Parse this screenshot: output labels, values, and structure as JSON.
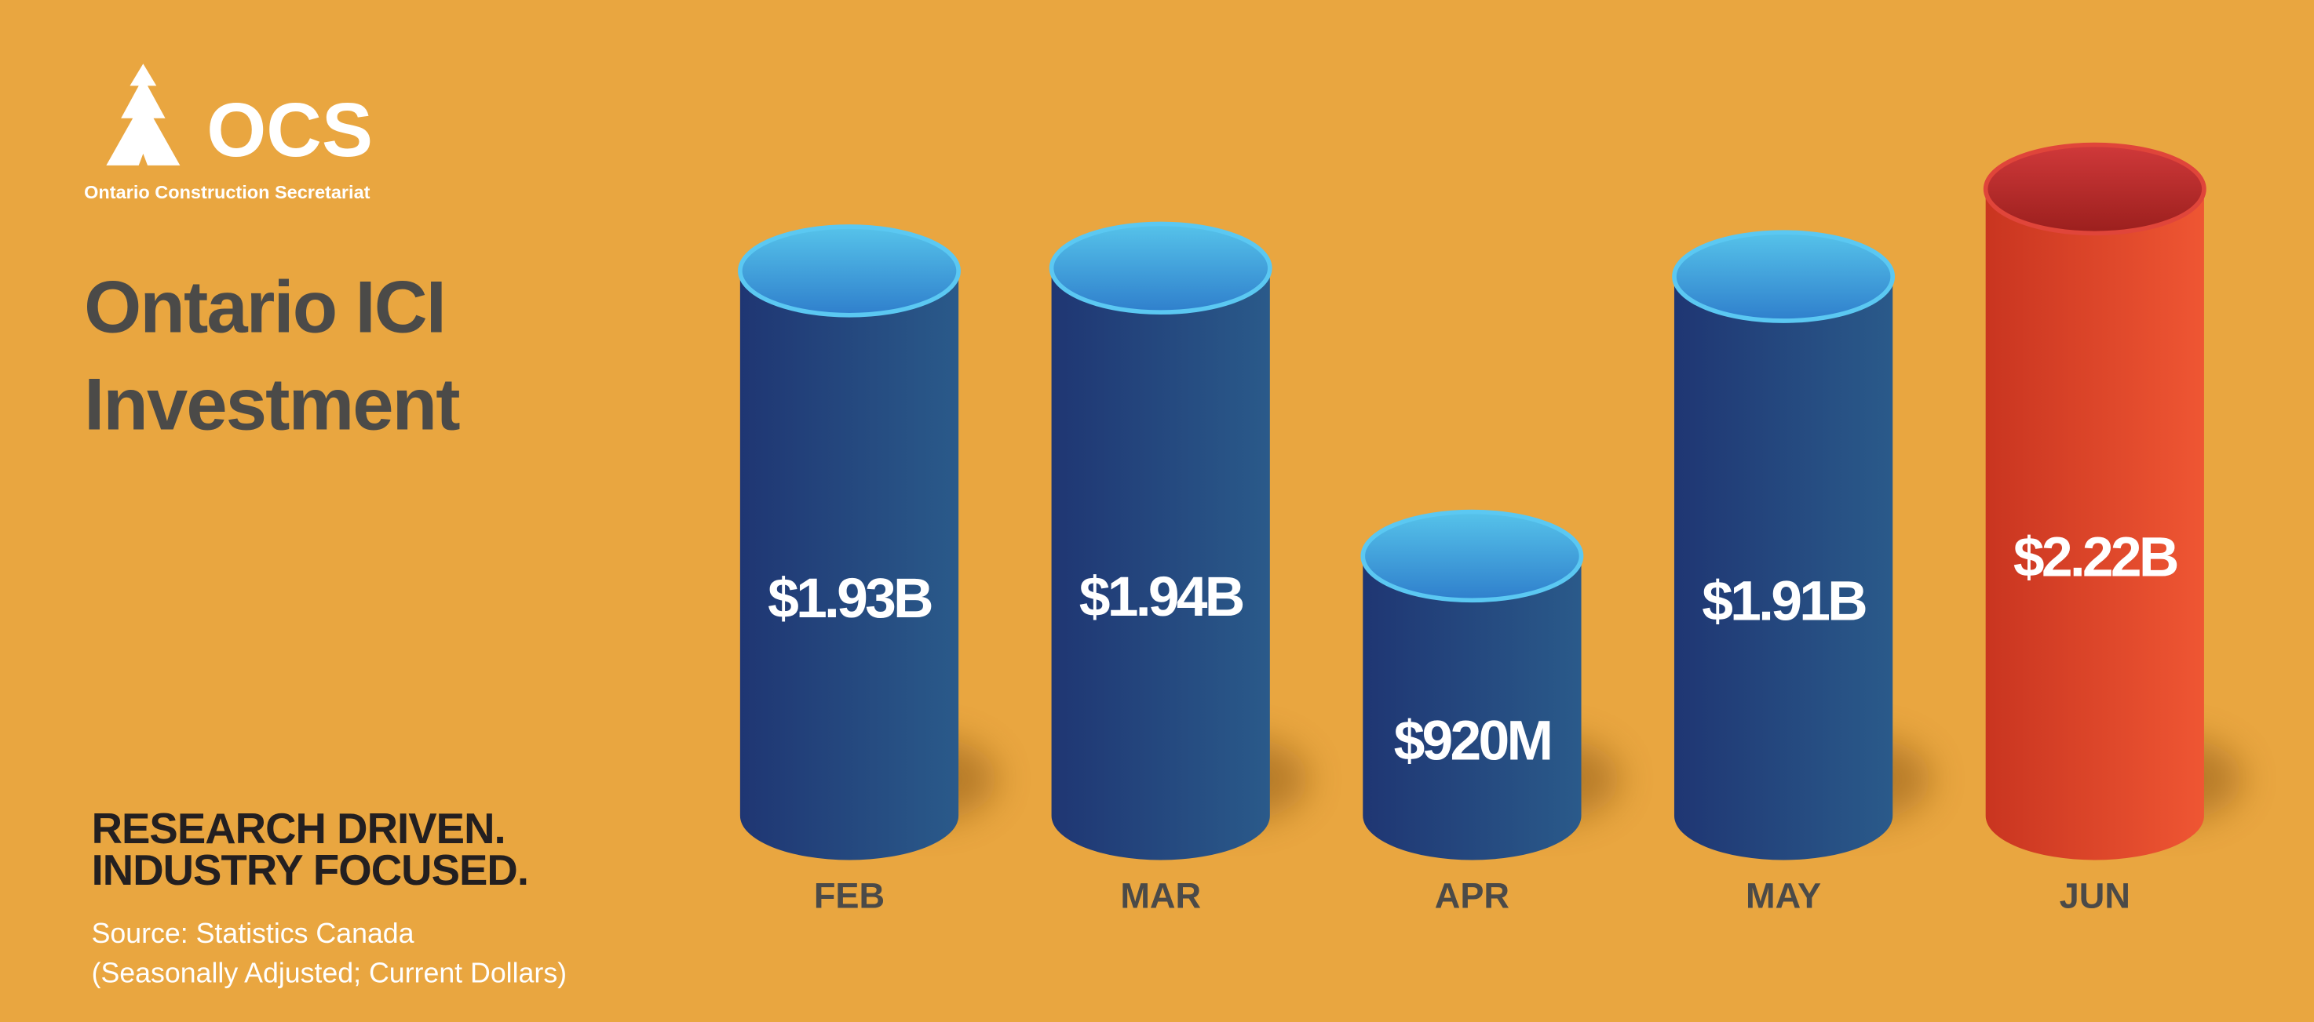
{
  "logo": {
    "mark": "OCS",
    "name": "Ontario Construction Secretariat"
  },
  "chart_data": {
    "type": "cylinder-bar",
    "title": "Ontario ICI Investment",
    "categories": [
      "FEB",
      "MAR",
      "APR",
      "MAY",
      "JUN"
    ],
    "values": [
      1930000000,
      1940000000,
      920000000,
      1910000000,
      2220000000
    ],
    "value_labels": [
      "$1.93B",
      "$1.94B",
      "$920M",
      "$1.91B",
      "$2.22B"
    ],
    "colors": [
      "blue",
      "blue",
      "blue",
      "blue",
      "red"
    ]
  },
  "tagline": [
    "RESEARCH DRIVEN.",
    "INDUSTRY FOCUSED."
  ],
  "source": "Source: Statistics Canada",
  "source_note": "(Seasonally Adjusted; Current Dollars)"
}
